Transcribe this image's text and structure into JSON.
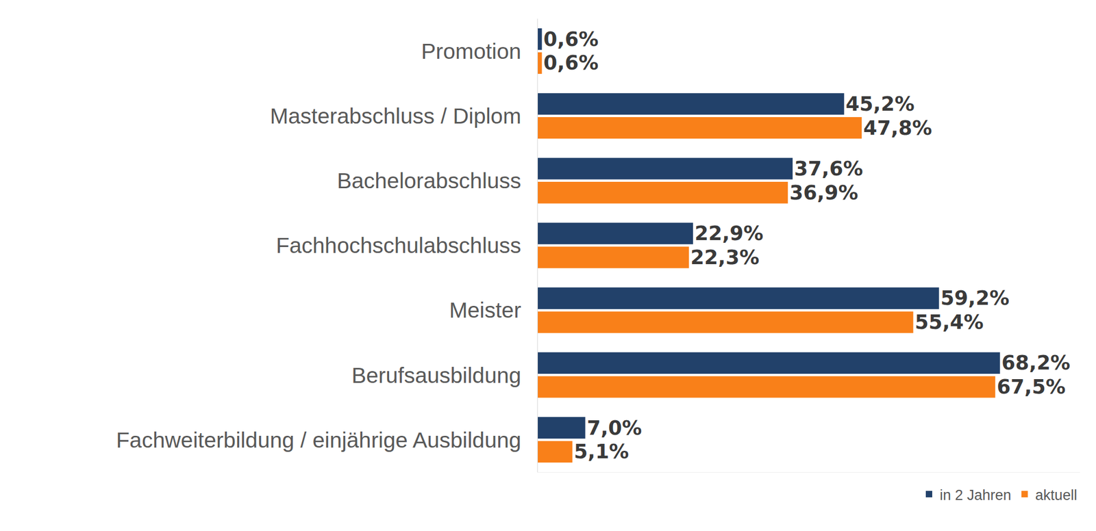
{
  "chart_data": {
    "type": "bar",
    "orientation": "horizontal",
    "categories": [
      "Promotion",
      "Masterabschluss / Diplom",
      "Bachelorabschluss",
      "Fachhochschulabschluss",
      "Meister",
      "Berufsausbildung",
      "Fachweiterbildung / einjährige Ausbildung"
    ],
    "series": [
      {
        "name": "in 2 Jahren",
        "color": "#22416a",
        "values": [
          0.6,
          45.2,
          37.6,
          22.9,
          59.2,
          68.2,
          7.0
        ],
        "value_labels": [
          "0,6%",
          "45,2%",
          "37,6%",
          "22,9%",
          "59,2%",
          "68,2%",
          "7,0%"
        ]
      },
      {
        "name": "aktuell",
        "color": "#f98019",
        "values": [
          0.6,
          47.8,
          36.9,
          22.3,
          55.4,
          67.5,
          5.1
        ],
        "value_labels": [
          "0,6%",
          "47,8%",
          "36,9%",
          "22,3%",
          "55,4%",
          "67,5%",
          "5,1%"
        ]
      }
    ],
    "xlim": [
      0,
      80
    ],
    "data_labels": true,
    "tick_labels": "y",
    "grid": false,
    "legend": "bottom right"
  }
}
